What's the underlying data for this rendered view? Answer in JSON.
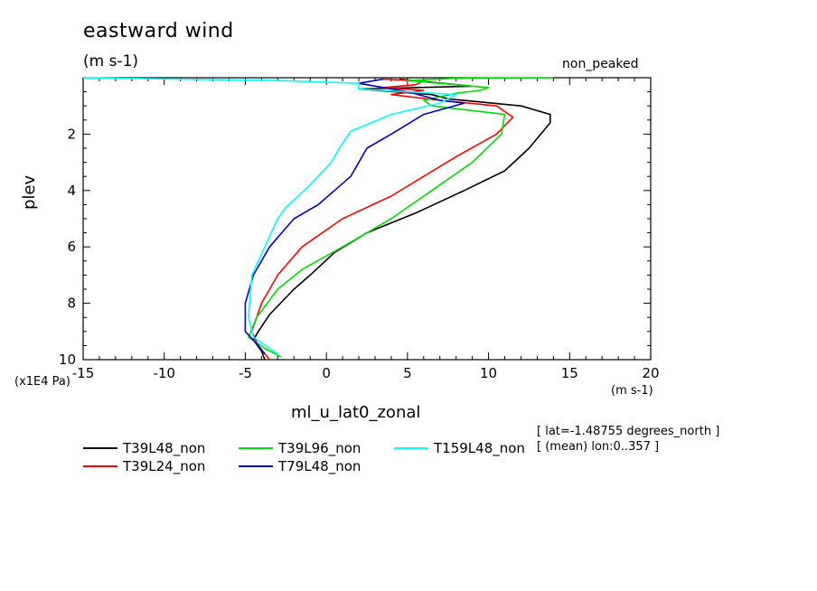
{
  "chart_data": {
    "type": "line",
    "title": "eastward wind",
    "subtitle": "(m s-1)",
    "top_right_label": "non_peaked",
    "xlabel": "ml_u_lat0_zonal",
    "ylabel": "plev",
    "x_unit": "(m s-1)",
    "y_unit": "(x1E4 Pa)",
    "xlim": [
      -15,
      20
    ],
    "ylim": [
      10,
      0
    ],
    "y_inverted": true,
    "x_ticks": [
      -15,
      -10,
      -5,
      0,
      5,
      10,
      15,
      20
    ],
    "x_tick_labels": [
      "-15",
      "-10",
      "-5",
      "0",
      "5",
      "10",
      "15",
      "20"
    ],
    "y_ticks": [
      2,
      4,
      6,
      8,
      10
    ],
    "y_tick_labels": [
      "2",
      "4",
      "6",
      "8",
      "10"
    ],
    "grid": false,
    "legend_position": "bottom",
    "annotations": [
      "[ lat=-1.48755 degrees_north ]",
      "[ (mean) lon:0..357 ]"
    ],
    "series": [
      {
        "name": "T39L48_non",
        "color": "#000000",
        "points": [
          [
            4.5,
            0.05
          ],
          [
            9,
            0.3
          ],
          [
            2,
            0.4
          ],
          [
            6.5,
            0.6
          ],
          [
            7.5,
            0.75
          ],
          [
            12,
            1.0
          ],
          [
            13.8,
            1.3
          ],
          [
            13.8,
            1.6
          ],
          [
            12.5,
            2.5
          ],
          [
            11,
            3.3
          ],
          [
            8.5,
            4.0
          ],
          [
            5.5,
            4.8
          ],
          [
            2.5,
            5.5
          ],
          [
            0.5,
            6.2
          ],
          [
            -1,
            7.0
          ],
          [
            -2,
            7.5
          ],
          [
            -3.5,
            8.4
          ],
          [
            -4.2,
            9.0
          ],
          [
            -4.5,
            9.3
          ],
          [
            -4,
            9.7
          ],
          [
            -3.8,
            10
          ]
        ]
      },
      {
        "name": "T39L24_non",
        "color": "#ff0000",
        "points": [
          [
            3.5,
            0.05
          ],
          [
            6,
            0.12
          ],
          [
            5.5,
            0.25
          ],
          [
            3.5,
            0.35
          ],
          [
            6,
            0.45
          ],
          [
            4,
            0.6
          ],
          [
            7,
            0.8
          ],
          [
            10.5,
            1.0
          ],
          [
            11.5,
            1.4
          ],
          [
            10.5,
            2.0
          ],
          [
            8,
            2.8
          ],
          [
            6,
            3.5
          ],
          [
            4,
            4.2
          ],
          [
            1,
            5.0
          ],
          [
            -1.5,
            6.0
          ],
          [
            -3,
            7.0
          ],
          [
            -4,
            8.0
          ],
          [
            -4.6,
            9.0
          ],
          [
            -4.2,
            9.5
          ],
          [
            -3.5,
            10
          ]
        ]
      },
      {
        "name": "T39L96_non",
        "color": "#00dd00",
        "points": [
          [
            14,
            0.0
          ],
          [
            8,
            0.02
          ],
          [
            5,
            0.1
          ],
          [
            10,
            0.35
          ],
          [
            9.5,
            0.45
          ],
          [
            8,
            0.55
          ],
          [
            6,
            0.8
          ],
          [
            6.5,
            1.0
          ],
          [
            11,
            1.3
          ],
          [
            10.8,
            2.0
          ],
          [
            9,
            3.0
          ],
          [
            6.5,
            4.0
          ],
          [
            4,
            5.0
          ],
          [
            1,
            6.0
          ],
          [
            -1.5,
            6.8
          ],
          [
            -3,
            7.5
          ],
          [
            -4.3,
            8.5
          ],
          [
            -4.8,
            9.2
          ],
          [
            -3.8,
            9.6
          ],
          [
            -2.8,
            9.9
          ]
        ]
      },
      {
        "name": "T79L48_non",
        "color": "#0000cc",
        "points": [
          [
            3.5,
            0.05
          ],
          [
            3,
            0.1
          ],
          [
            2,
            0.2
          ],
          [
            5,
            0.5
          ],
          [
            7,
            0.8
          ],
          [
            8.5,
            0.9
          ],
          [
            6,
            1.3
          ],
          [
            4,
            2.0
          ],
          [
            2.5,
            2.5
          ],
          [
            1.5,
            3.5
          ],
          [
            -0.5,
            4.5
          ],
          [
            -2,
            5.0
          ],
          [
            -3.5,
            6.0
          ],
          [
            -4.5,
            7.0
          ],
          [
            -5,
            8.0
          ],
          [
            -5,
            9.0
          ],
          [
            -4.2,
            9.5
          ],
          [
            -3.8,
            9.8
          ]
        ]
      },
      {
        "name": "T159L48_non",
        "color": "#00ffff",
        "points": [
          [
            -15,
            0.0
          ],
          [
            -3,
            0.1
          ],
          [
            2,
            0.2
          ],
          [
            2,
            0.4
          ],
          [
            8,
            0.6
          ],
          [
            7,
            0.9
          ],
          [
            4,
            1.3
          ],
          [
            1.5,
            1.9
          ],
          [
            0.8,
            2.5
          ],
          [
            0.3,
            3.0
          ],
          [
            -1,
            3.8
          ],
          [
            -2.5,
            4.6
          ],
          [
            -3,
            5.0
          ],
          [
            -3.8,
            6.0
          ],
          [
            -4.6,
            7.0
          ],
          [
            -4.8,
            8.5
          ],
          [
            -4.5,
            9.2
          ],
          [
            -3.5,
            9.6
          ],
          [
            -3,
            9.8
          ]
        ]
      }
    ]
  }
}
